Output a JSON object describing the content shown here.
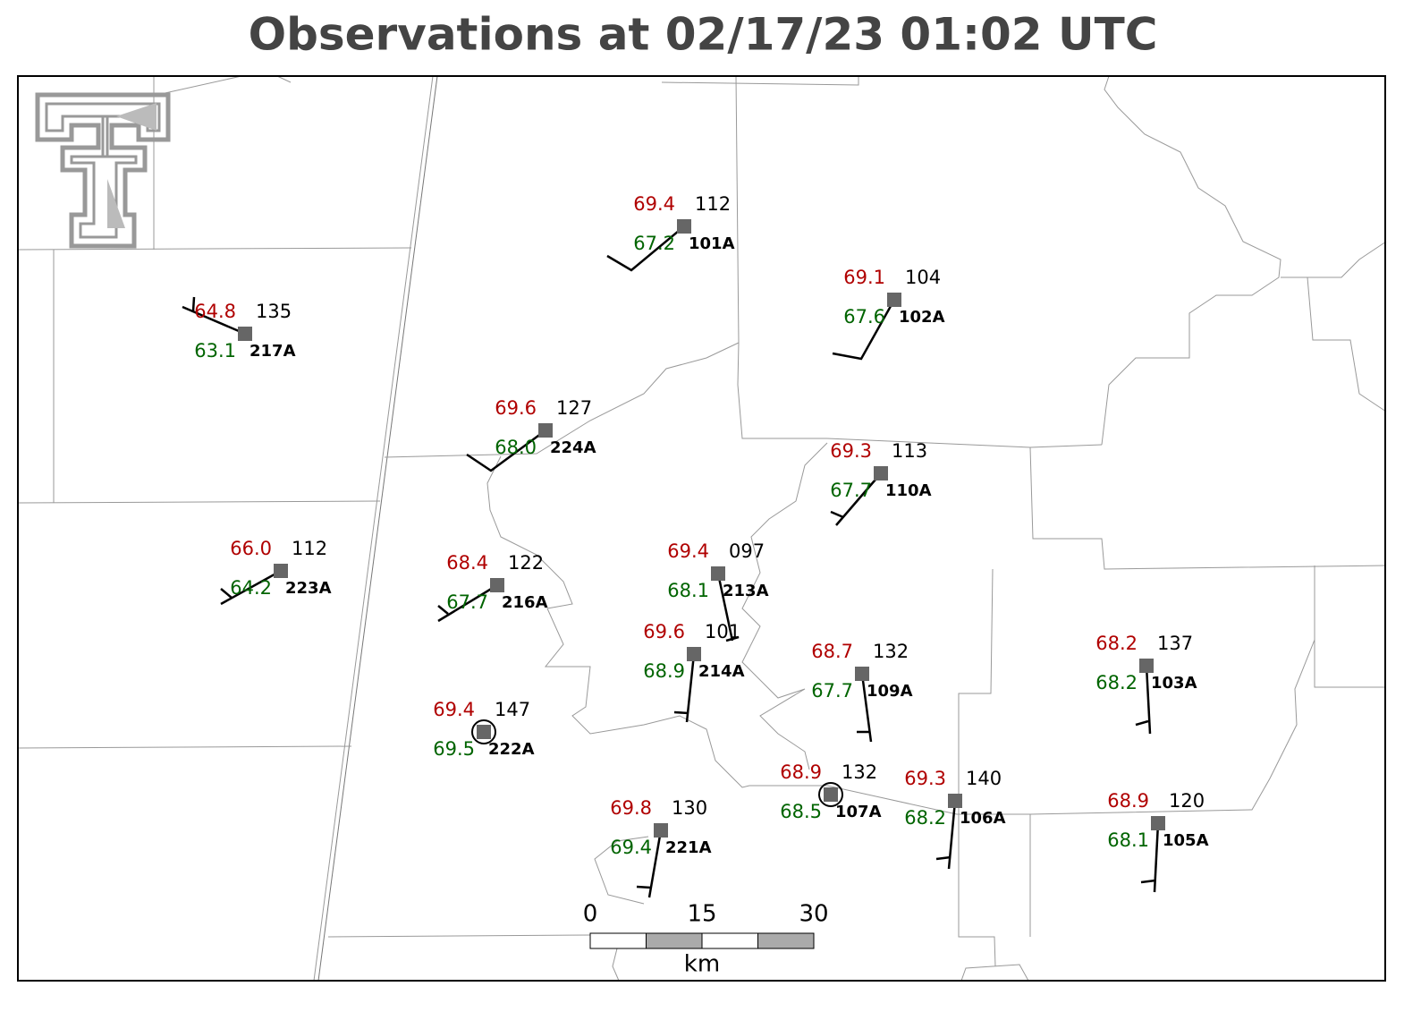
{
  "title": "Observations at 02/17/23 01:02 UTC",
  "stations": [
    {
      "id": "101A",
      "temp": "69.4",
      "dew": "67.2",
      "pres": "112"
    },
    {
      "id": "102A",
      "temp": "69.1",
      "dew": "67.6",
      "pres": "104"
    },
    {
      "id": "217A",
      "temp": "64.8",
      "dew": "63.1",
      "pres": "135"
    },
    {
      "id": "224A",
      "temp": "69.6",
      "dew": "68.0",
      "pres": "127"
    },
    {
      "id": "110A",
      "temp": "69.3",
      "dew": "67.7",
      "pres": "113"
    },
    {
      "id": "223A",
      "temp": "66.0",
      "dew": "64.2",
      "pres": "112"
    },
    {
      "id": "216A",
      "temp": "68.4",
      "dew": "67.7",
      "pres": "122"
    },
    {
      "id": "213A",
      "temp": "69.4",
      "dew": "68.1",
      "pres": "097"
    },
    {
      "id": "214A",
      "temp": "69.6",
      "dew": "68.9",
      "pres": "101"
    },
    {
      "id": "109A",
      "temp": "68.7",
      "dew": "67.7",
      "pres": "132"
    },
    {
      "id": "103A",
      "temp": "68.2",
      "dew": "68.2",
      "pres": "137"
    },
    {
      "id": "222A",
      "temp": "69.4",
      "dew": "69.5",
      "pres": "147"
    },
    {
      "id": "107A",
      "temp": "68.9",
      "dew": "68.5",
      "pres": "132"
    },
    {
      "id": "106A",
      "temp": "69.3",
      "dew": "68.2",
      "pres": "140"
    },
    {
      "id": "221A",
      "temp": "69.8",
      "dew": "69.4",
      "pres": "130"
    },
    {
      "id": "105A",
      "temp": "68.9",
      "dew": "68.1",
      "pres": "120"
    }
  ],
  "scale_bar": {
    "ticks": [
      "0",
      "15",
      "30"
    ],
    "unit": "km"
  }
}
